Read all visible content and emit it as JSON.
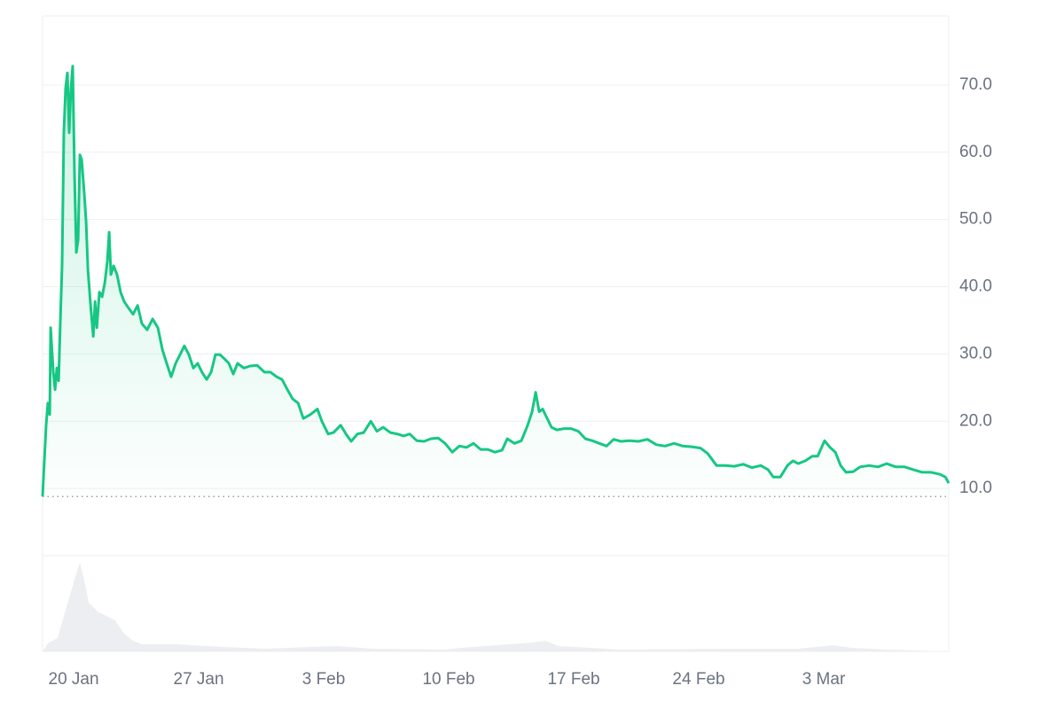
{
  "chart_data": {
    "type": "line",
    "color": "#16c784",
    "grid": true,
    "xlim": [
      18.26,
      69.0
    ],
    "xticks": [
      {
        "value": 20,
        "label": "20 Jan"
      },
      {
        "value": 27,
        "label": "27 Jan"
      },
      {
        "value": 34,
        "label": "3 Feb"
      },
      {
        "value": 41,
        "label": "10 Feb"
      },
      {
        "value": 48,
        "label": "17 Feb"
      },
      {
        "value": 55,
        "label": "24 Feb"
      },
      {
        "value": 62,
        "label": "3 Mar"
      }
    ],
    "ylim": [
      0,
      80
    ],
    "yticks": [
      {
        "value": 10,
        "label": "10.0"
      },
      {
        "value": 20,
        "label": "20.0"
      },
      {
        "value": 30,
        "label": "30.0"
      },
      {
        "value": 40,
        "label": "40.0"
      },
      {
        "value": 50,
        "label": "50.0"
      },
      {
        "value": 60,
        "label": "60.0"
      },
      {
        "value": 70,
        "label": "70.0"
      }
    ],
    "x": [
      18.26,
      18.46,
      18.56,
      18.66,
      18.71,
      18.86,
      18.96,
      19.06,
      19.16,
      19.26,
      19.35,
      19.45,
      19.55,
      19.65,
      19.75,
      19.85,
      19.95,
      20.05,
      20.15,
      20.25,
      20.35,
      20.45,
      20.6,
      20.7,
      20.8,
      20.95,
      21.1,
      21.2,
      21.3,
      21.44,
      21.59,
      21.74,
      21.89,
      21.99,
      22.09,
      22.24,
      22.43,
      22.63,
      22.83,
      23.08,
      23.33,
      23.58,
      23.82,
      24.12,
      24.42,
      24.72,
      24.97,
      25.21,
      25.46,
      25.71,
      25.96,
      26.2,
      26.45,
      26.7,
      26.95,
      27.2,
      27.45,
      27.7,
      27.94,
      28.19,
      28.44,
      28.69,
      28.94,
      29.18,
      29.53,
      29.88,
      30.28,
      30.68,
      31.02,
      31.37,
      31.67,
      31.97,
      32.27,
      32.57,
      32.86,
      33.26,
      33.65,
      33.9,
      34.25,
      34.55,
      34.95,
      35.25,
      35.54,
      35.89,
      36.24,
      36.64,
      36.98,
      37.33,
      37.73,
      38.13,
      38.47,
      38.82,
      39.22,
      39.62,
      40.01,
      40.41,
      40.8,
      41.2,
      41.6,
      42.0,
      42.39,
      42.79,
      43.19,
      43.59,
      43.99,
      44.28,
      44.68,
      45.07,
      45.42,
      45.67,
      45.87,
      46.07,
      46.26,
      46.46,
      46.76,
      47.06,
      47.46,
      47.86,
      48.26,
      48.65,
      49.05,
      49.44,
      49.84,
      50.24,
      50.64,
      51.13,
      51.63,
      52.13,
      52.63,
      53.12,
      53.62,
      54.11,
      54.61,
      55.1,
      55.5,
      56.0,
      56.49,
      56.99,
      57.49,
      57.98,
      58.48,
      58.88,
      59.17,
      59.57,
      59.97,
      60.27,
      60.57,
      60.96,
      61.36,
      61.66,
      62.05,
      62.35,
      62.65,
      62.95,
      63.25,
      63.65,
      64.04,
      64.54,
      65.04,
      65.53,
      66.03,
      66.53,
      67.02,
      67.52,
      68.01,
      68.51,
      68.81,
      69.0
    ],
    "values": [
      8.8,
      19.4,
      22.7,
      21.0,
      33.9,
      27.3,
      24.7,
      27.9,
      26.0,
      35.2,
      43.1,
      62.9,
      69.5,
      71.8,
      62.9,
      69.5,
      72.8,
      56.3,
      45.1,
      47.0,
      59.6,
      58.9,
      53.7,
      49.7,
      42.4,
      37.2,
      32.6,
      37.8,
      33.9,
      39.2,
      38.5,
      40.5,
      43.8,
      48.1,
      41.8,
      43.1,
      41.8,
      39.2,
      37.8,
      36.8,
      35.9,
      37.2,
      34.5,
      33.6,
      35.2,
      33.9,
      30.6,
      28.6,
      26.6,
      28.6,
      29.9,
      31.2,
      29.9,
      27.9,
      28.6,
      27.2,
      26.2,
      27.3,
      29.9,
      29.9,
      29.3,
      28.6,
      27.0,
      28.6,
      27.9,
      28.2,
      28.3,
      27.3,
      27.3,
      26.6,
      26.2,
      24.7,
      23.3,
      22.7,
      20.4,
      21.0,
      21.8,
      20.0,
      18.1,
      18.3,
      19.4,
      18.1,
      17.0,
      18.1,
      18.3,
      20.0,
      18.5,
      19.1,
      18.3,
      18.1,
      17.8,
      18.1,
      17.1,
      17.0,
      17.4,
      17.5,
      16.7,
      15.4,
      16.3,
      16.1,
      16.7,
      15.8,
      15.8,
      15.4,
      15.7,
      17.4,
      16.7,
      17.1,
      19.4,
      21.4,
      24.3,
      21.4,
      21.8,
      20.7,
      19.1,
      18.7,
      18.9,
      18.9,
      18.5,
      17.4,
      17.1,
      16.7,
      16.3,
      17.3,
      17.0,
      17.1,
      17.0,
      17.3,
      16.5,
      16.3,
      16.7,
      16.3,
      16.2,
      16.0,
      15.2,
      13.4,
      13.4,
      13.3,
      13.6,
      13.1,
      13.4,
      12.8,
      11.7,
      11.7,
      13.4,
      14.1,
      13.7,
      14.1,
      14.8,
      14.8,
      17.1,
      16.1,
      15.4,
      13.4,
      12.4,
      12.5,
      13.2,
      13.4,
      13.2,
      13.7,
      13.2,
      13.2,
      12.8,
      12.4,
      12.4,
      12.1,
      11.7,
      10.8
    ],
    "volume": {
      "color": "#eceef1",
      "ylim": [
        0,
        100
      ],
      "x": [
        18.26,
        18.61,
        19.11,
        19.45,
        19.75,
        20.1,
        20.35,
        20.6,
        20.84,
        21.34,
        21.84,
        22.33,
        22.83,
        23.33,
        23.82,
        25.81,
        28.29,
        30.77,
        33.26,
        34.75,
        36.73,
        40.7,
        41.7,
        45.67,
        46.42,
        47.16,
        50.64,
        56.59,
        60.57,
        62.06,
        62.55,
        63.55,
        65.53,
        69.0
      ],
      "values": [
        0,
        10,
        15,
        40,
        60,
        85,
        100,
        80,
        55,
        45,
        40,
        35,
        20,
        12,
        8,
        8,
        5,
        3,
        5,
        6,
        3,
        2,
        4,
        10,
        12,
        6,
        2,
        3,
        3,
        6,
        7,
        4,
        2,
        0
      ]
    }
  }
}
